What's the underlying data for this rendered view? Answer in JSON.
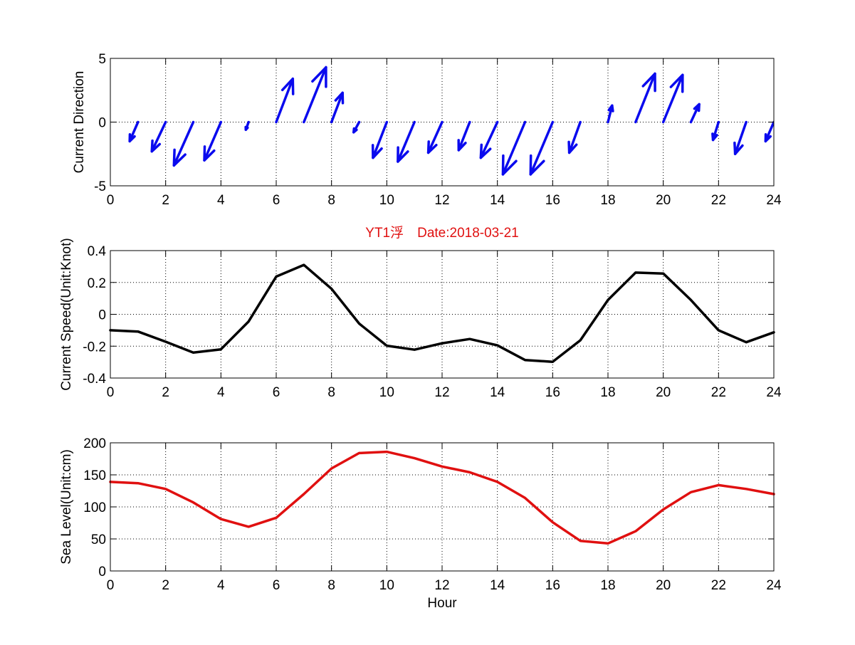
{
  "figure": {
    "title": "YT1浮　Date:2018-03-21",
    "title_color": "#e01010",
    "xlabel": "Hour"
  },
  "chart_data": [
    {
      "type": "quiver",
      "ylabel": "Current Direction",
      "xlim": [
        0,
        24
      ],
      "ylim": [
        -5,
        5
      ],
      "xticks": [
        0,
        2,
        4,
        6,
        8,
        10,
        12,
        14,
        16,
        18,
        20,
        22,
        24
      ],
      "yticks": [
        -5,
        0,
        5
      ],
      "grid": true,
      "color": "#0a0aee",
      "x": [
        1,
        2,
        3,
        4,
        5,
        6,
        7,
        8,
        9,
        10,
        11,
        12,
        13,
        14,
        15,
        16,
        17,
        18,
        19,
        20,
        21,
        22,
        23,
        24
      ],
      "u": [
        -0.3,
        -0.5,
        -0.7,
        -0.6,
        -0.1,
        0.6,
        0.8,
        0.4,
        -0.2,
        -0.5,
        -0.6,
        -0.5,
        -0.4,
        -0.6,
        -0.8,
        -0.8,
        -0.4,
        0.15,
        0.7,
        0.7,
        0.3,
        -0.2,
        -0.4,
        -0.3
      ],
      "v": [
        -1.5,
        -2.3,
        -3.4,
        -3.0,
        -0.6,
        3.4,
        4.3,
        2.3,
        -0.8,
        -2.8,
        -3.1,
        -2.4,
        -2.2,
        -2.8,
        -4.1,
        -4.1,
        -2.4,
        1.3,
        3.8,
        3.7,
        1.4,
        -1.4,
        -2.5,
        -1.5
      ]
    },
    {
      "type": "line",
      "ylabel": "Current Speed(Unit:Knot)",
      "xlim": [
        0,
        24
      ],
      "ylim": [
        -0.4,
        0.4
      ],
      "xticks": [
        0,
        2,
        4,
        6,
        8,
        10,
        12,
        14,
        16,
        18,
        20,
        22,
        24
      ],
      "yticks": [
        -0.4,
        -0.2,
        0,
        0.2,
        0.4
      ],
      "grid": true,
      "color": "#000000",
      "x": [
        0,
        1,
        2,
        3,
        4,
        5,
        6,
        7,
        8,
        9,
        10,
        11,
        12,
        13,
        14,
        15,
        16,
        17,
        18,
        19,
        20,
        21,
        22,
        23,
        24
      ],
      "y": [
        -0.1,
        -0.108,
        -0.172,
        -0.24,
        -0.22,
        -0.045,
        0.237,
        0.31,
        0.16,
        -0.058,
        -0.197,
        -0.222,
        -0.182,
        -0.155,
        -0.195,
        -0.287,
        -0.298,
        -0.163,
        0.09,
        0.262,
        0.256,
        0.09,
        -0.1,
        -0.175,
        -0.113
      ]
    },
    {
      "type": "line",
      "ylabel": "Sea Level(Unit:cm)",
      "xlim": [
        0,
        24
      ],
      "ylim": [
        0,
        200
      ],
      "xticks": [
        0,
        2,
        4,
        6,
        8,
        10,
        12,
        14,
        16,
        18,
        20,
        22,
        24
      ],
      "yticks": [
        0,
        50,
        100,
        150,
        200
      ],
      "grid": true,
      "color": "#e01010",
      "x": [
        0,
        1,
        2,
        3,
        4,
        5,
        6,
        7,
        8,
        9,
        10,
        11,
        12,
        13,
        14,
        15,
        16,
        17,
        18,
        19,
        20,
        21,
        22,
        23,
        24
      ],
      "y": [
        139,
        137,
        128,
        107,
        81,
        69,
        83,
        120,
        160,
        184,
        186,
        176,
        163,
        154,
        139,
        114,
        76,
        47,
        43,
        62,
        96,
        123,
        134,
        128,
        120
      ]
    }
  ]
}
